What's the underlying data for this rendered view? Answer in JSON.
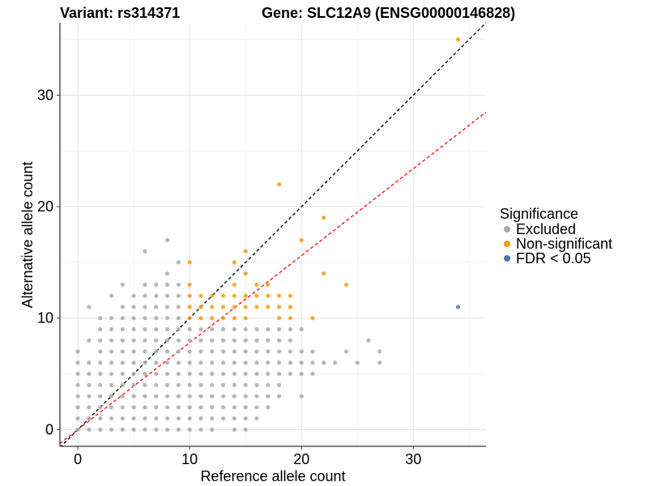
{
  "chart_data": {
    "type": "scatter",
    "title_left": "Variant: rs314371",
    "title_right": "Gene: SLC12A9 (ENSG00000146828)",
    "xlabel": "Reference allele count",
    "ylabel": "Alternative allele count",
    "xlim": [
      -1.6,
      36.5
    ],
    "ylim": [
      -1.5,
      36.5
    ],
    "xticks": [
      0,
      10,
      20,
      30
    ],
    "yticks": [
      0,
      10,
      20,
      30
    ],
    "grid": true,
    "reference_line": {
      "slope": 1,
      "intercept": 0,
      "color": "#000000",
      "style": "dashed"
    },
    "fit_line": {
      "slope": 0.78,
      "intercept": 0,
      "color": "#ff0000",
      "style": "dashed"
    },
    "legend": {
      "title": "Significance",
      "position": "right",
      "entries": [
        {
          "label": "Excluded",
          "color": "#aaaaaa"
        },
        {
          "label": "Non-significant",
          "color": "#f39c12"
        },
        {
          "label": "FDR < 0.05",
          "color": "#4a78a8"
        }
      ]
    },
    "series": [
      {
        "name": "Excluded",
        "color": "#aaaaaa",
        "points": [
          [
            0,
            0
          ],
          [
            0,
            1
          ],
          [
            0,
            2
          ],
          [
            0,
            3
          ],
          [
            0,
            4
          ],
          [
            0,
            5
          ],
          [
            0,
            6
          ],
          [
            0,
            7
          ],
          [
            1,
            0
          ],
          [
            1,
            1
          ],
          [
            1,
            2
          ],
          [
            1,
            3
          ],
          [
            1,
            4
          ],
          [
            1,
            5
          ],
          [
            1,
            6
          ],
          [
            1,
            8
          ],
          [
            1,
            11
          ],
          [
            2,
            0
          ],
          [
            2,
            1
          ],
          [
            2,
            2
          ],
          [
            2,
            3
          ],
          [
            2,
            4
          ],
          [
            2,
            5
          ],
          [
            2,
            6
          ],
          [
            2,
            7
          ],
          [
            2,
            8
          ],
          [
            2,
            9
          ],
          [
            2,
            10
          ],
          [
            3,
            0
          ],
          [
            3,
            1
          ],
          [
            3,
            2
          ],
          [
            3,
            3
          ],
          [
            3,
            4
          ],
          [
            3,
            5
          ],
          [
            3,
            6
          ],
          [
            3,
            7
          ],
          [
            3,
            8
          ],
          [
            3,
            9
          ],
          [
            3,
            10
          ],
          [
            3,
            12
          ],
          [
            4,
            0
          ],
          [
            4,
            1
          ],
          [
            4,
            2
          ],
          [
            4,
            3
          ],
          [
            4,
            4
          ],
          [
            4,
            5
          ],
          [
            4,
            6
          ],
          [
            4,
            7
          ],
          [
            4,
            8
          ],
          [
            4,
            9
          ],
          [
            4,
            10
          ],
          [
            4,
            11
          ],
          [
            4,
            13
          ],
          [
            5,
            0
          ],
          [
            5,
            1
          ],
          [
            5,
            2
          ],
          [
            5,
            3
          ],
          [
            5,
            4
          ],
          [
            5,
            5
          ],
          [
            5,
            6
          ],
          [
            5,
            7
          ],
          [
            5,
            8
          ],
          [
            5,
            9
          ],
          [
            5,
            10
          ],
          [
            5,
            11
          ],
          [
            5,
            12
          ],
          [
            6,
            0
          ],
          [
            6,
            1
          ],
          [
            6,
            2
          ],
          [
            6,
            3
          ],
          [
            6,
            4
          ],
          [
            6,
            5
          ],
          [
            6,
            6
          ],
          [
            6,
            7
          ],
          [
            6,
            8
          ],
          [
            6,
            9
          ],
          [
            6,
            10
          ],
          [
            6,
            11
          ],
          [
            6,
            12
          ],
          [
            6,
            13
          ],
          [
            6,
            16
          ],
          [
            7,
            0
          ],
          [
            7,
            1
          ],
          [
            7,
            2
          ],
          [
            7,
            3
          ],
          [
            7,
            4
          ],
          [
            7,
            5
          ],
          [
            7,
            6
          ],
          [
            7,
            7
          ],
          [
            7,
            8
          ],
          [
            7,
            9
          ],
          [
            7,
            10
          ],
          [
            7,
            11
          ],
          [
            7,
            12
          ],
          [
            7,
            13
          ],
          [
            8,
            0
          ],
          [
            8,
            1
          ],
          [
            8,
            2
          ],
          [
            8,
            3
          ],
          [
            8,
            4
          ],
          [
            8,
            5
          ],
          [
            8,
            6
          ],
          [
            8,
            7
          ],
          [
            8,
            8
          ],
          [
            8,
            9
          ],
          [
            8,
            10
          ],
          [
            8,
            11
          ],
          [
            8,
            12
          ],
          [
            8,
            13
          ],
          [
            8,
            14
          ],
          [
            8,
            17
          ],
          [
            9,
            0
          ],
          [
            9,
            1
          ],
          [
            9,
            2
          ],
          [
            9,
            3
          ],
          [
            9,
            4
          ],
          [
            9,
            5
          ],
          [
            9,
            6
          ],
          [
            9,
            7
          ],
          [
            9,
            8
          ],
          [
            9,
            9
          ],
          [
            9,
            10
          ],
          [
            9,
            11
          ],
          [
            9,
            12
          ],
          [
            9,
            13
          ],
          [
            9,
            15
          ],
          [
            10,
            0
          ],
          [
            10,
            1
          ],
          [
            10,
            2
          ],
          [
            10,
            3
          ],
          [
            10,
            4
          ],
          [
            10,
            5
          ],
          [
            10,
            6
          ],
          [
            10,
            7
          ],
          [
            10,
            8
          ],
          [
            10,
            9
          ],
          [
            11,
            0
          ],
          [
            11,
            1
          ],
          [
            11,
            2
          ],
          [
            11,
            3
          ],
          [
            11,
            4
          ],
          [
            11,
            5
          ],
          [
            11,
            6
          ],
          [
            11,
            7
          ],
          [
            11,
            8
          ],
          [
            11,
            9
          ],
          [
            12,
            0
          ],
          [
            12,
            1
          ],
          [
            12,
            2
          ],
          [
            12,
            3
          ],
          [
            12,
            4
          ],
          [
            12,
            5
          ],
          [
            12,
            6
          ],
          [
            12,
            7
          ],
          [
            12,
            8
          ],
          [
            12,
            9
          ],
          [
            13,
            1
          ],
          [
            13,
            2
          ],
          [
            13,
            3
          ],
          [
            13,
            4
          ],
          [
            13,
            5
          ],
          [
            13,
            6
          ],
          [
            13,
            7
          ],
          [
            13,
            8
          ],
          [
            13,
            9
          ],
          [
            14,
            0
          ],
          [
            14,
            1
          ],
          [
            14,
            2
          ],
          [
            14,
            3
          ],
          [
            14,
            4
          ],
          [
            14,
            5
          ],
          [
            14,
            6
          ],
          [
            14,
            7
          ],
          [
            14,
            8
          ],
          [
            14,
            9
          ],
          [
            15,
            0
          ],
          [
            15,
            1
          ],
          [
            15,
            2
          ],
          [
            15,
            3
          ],
          [
            15,
            4
          ],
          [
            15,
            5
          ],
          [
            15,
            6
          ],
          [
            15,
            7
          ],
          [
            15,
            8
          ],
          [
            15,
            9
          ],
          [
            16,
            1
          ],
          [
            16,
            2
          ],
          [
            16,
            3
          ],
          [
            16,
            4
          ],
          [
            16,
            5
          ],
          [
            16,
            6
          ],
          [
            16,
            7
          ],
          [
            16,
            8
          ],
          [
            16,
            9
          ],
          [
            17,
            2
          ],
          [
            17,
            3
          ],
          [
            17,
            4
          ],
          [
            17,
            5
          ],
          [
            17,
            6
          ],
          [
            17,
            7
          ],
          [
            17,
            8
          ],
          [
            17,
            9
          ],
          [
            18,
            3
          ],
          [
            18,
            4
          ],
          [
            18,
            5
          ],
          [
            18,
            6
          ],
          [
            18,
            7
          ],
          [
            18,
            8
          ],
          [
            18,
            9
          ],
          [
            19,
            5
          ],
          [
            19,
            6
          ],
          [
            19,
            7
          ],
          [
            19,
            8
          ],
          [
            19,
            9
          ],
          [
            20,
            3
          ],
          [
            20,
            5
          ],
          [
            20,
            6
          ],
          [
            20,
            7
          ],
          [
            20,
            9
          ],
          [
            21,
            5
          ],
          [
            21,
            6
          ],
          [
            21,
            7
          ],
          [
            22,
            6
          ],
          [
            23,
            6
          ],
          [
            24,
            7
          ],
          [
            25,
            6
          ],
          [
            26,
            8
          ],
          [
            27,
            6
          ],
          [
            27,
            7
          ]
        ]
      },
      {
        "name": "Non-significant",
        "color": "#f39c12",
        "points": [
          [
            10,
            10
          ],
          [
            10,
            11
          ],
          [
            10,
            12
          ],
          [
            10,
            13
          ],
          [
            10,
            15
          ],
          [
            11,
            10
          ],
          [
            11,
            11
          ],
          [
            11,
            12
          ],
          [
            12,
            10
          ],
          [
            12,
            11
          ],
          [
            12,
            12
          ],
          [
            13,
            10
          ],
          [
            13,
            11
          ],
          [
            13,
            12
          ],
          [
            14,
            10
          ],
          [
            14,
            11
          ],
          [
            14,
            12
          ],
          [
            14,
            13
          ],
          [
            14,
            15
          ],
          [
            15,
            10
          ],
          [
            15,
            11
          ],
          [
            15,
            12
          ],
          [
            15,
            14
          ],
          [
            15,
            16
          ],
          [
            16,
            11
          ],
          [
            16,
            12
          ],
          [
            16,
            13
          ],
          [
            17,
            11
          ],
          [
            17,
            12
          ],
          [
            17,
            13
          ],
          [
            18,
            10
          ],
          [
            18,
            11
          ],
          [
            18,
            12
          ],
          [
            18,
            22
          ],
          [
            19,
            10
          ],
          [
            19,
            11
          ],
          [
            19,
            12
          ],
          [
            20,
            17
          ],
          [
            21,
            10
          ],
          [
            22,
            14
          ],
          [
            22,
            19
          ],
          [
            24,
            13
          ],
          [
            34,
            35
          ]
        ]
      },
      {
        "name": "FDR < 0.05",
        "color": "#4a78a8",
        "points": [
          [
            34,
            11
          ]
        ]
      }
    ]
  }
}
